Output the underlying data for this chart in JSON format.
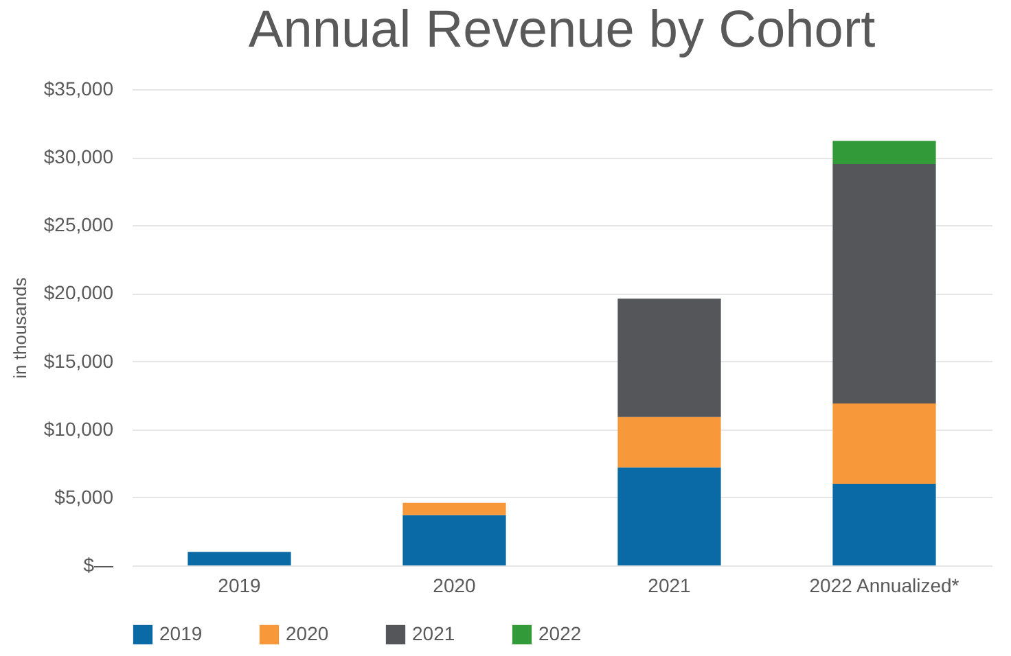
{
  "chart_data": {
    "type": "bar",
    "title": "Annual Revenue by Cohort",
    "ylabel": "in thousands",
    "stacked": true,
    "categories": [
      "2019",
      "2020",
      "2021",
      "2022 Annualized*"
    ],
    "series": [
      {
        "name": "2019",
        "color": "#0a6aa6",
        "values": [
          1000,
          3700,
          7200,
          6000
        ]
      },
      {
        "name": "2020",
        "color": "#f7993a",
        "values": [
          null,
          900,
          3700,
          5900
        ]
      },
      {
        "name": "2021",
        "color": "#54565a",
        "values": [
          null,
          null,
          8700,
          17600
        ]
      },
      {
        "name": "2022",
        "color": "#339a3a",
        "values": [
          null,
          null,
          null,
          1700
        ]
      }
    ],
    "ylim": [
      0,
      35000
    ],
    "yticks": [
      {
        "value": 0,
        "label": "$—"
      },
      {
        "value": 5000,
        "label": "$5,000"
      },
      {
        "value": 10000,
        "label": "$10,000"
      },
      {
        "value": 15000,
        "label": "$15,000"
      },
      {
        "value": 20000,
        "label": "$20,000"
      },
      {
        "value": 25000,
        "label": "$25,000"
      },
      {
        "value": 30000,
        "label": "$30,000"
      },
      {
        "value": 35000,
        "label": "$35,000"
      }
    ],
    "grid": "y",
    "legend": "bottom"
  }
}
